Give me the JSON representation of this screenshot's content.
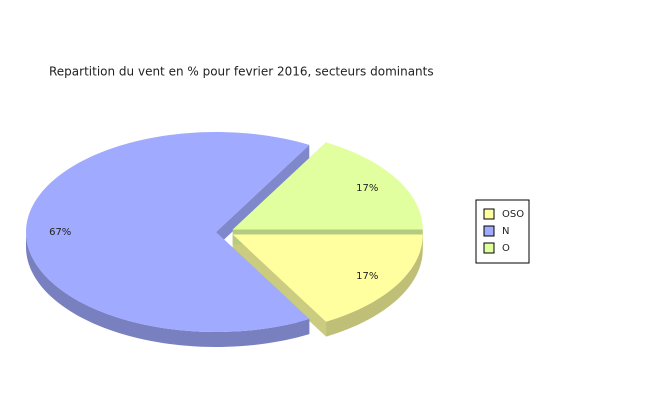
{
  "chart_data": {
    "type": "pie",
    "title": "Repartition du vent en % pour fevrier 2016, secteurs dominants",
    "categories": [
      "OSO",
      "N",
      "O"
    ],
    "values": [
      17,
      67,
      17
    ],
    "value_labels": [
      "17%",
      "67%",
      "17%"
    ],
    "colors": [
      "#ffffa0",
      "#a0aaff",
      "#e2ffa0"
    ],
    "legend": "right"
  }
}
